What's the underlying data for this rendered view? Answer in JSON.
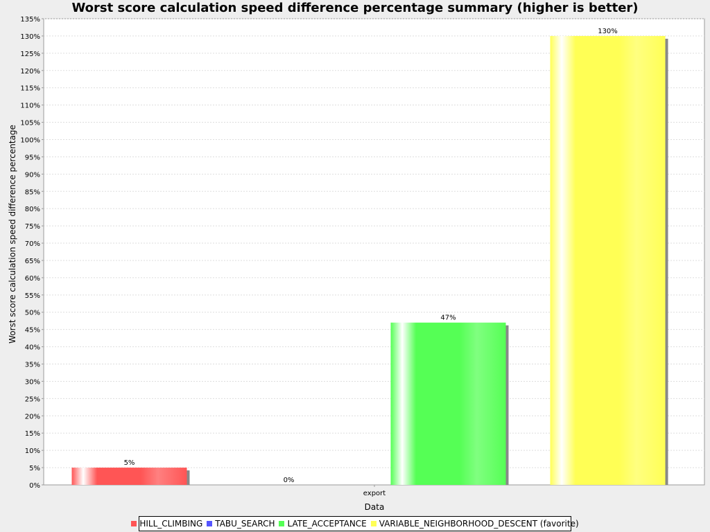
{
  "chart_data": {
    "type": "bar",
    "title": "Worst score calculation speed difference percentage summary (higher is better)",
    "xlabel": "Data",
    "ylabel": "Worst score calculation speed difference percentage",
    "categories": [
      "export"
    ],
    "series": [
      {
        "name": "HILL_CLIMBING",
        "values": [
          5
        ],
        "label": "5%",
        "color": "#ff5555"
      },
      {
        "name": "TABU_SEARCH",
        "values": [
          0
        ],
        "label": "0%",
        "color": "#5555ff"
      },
      {
        "name": "LATE_ACCEPTANCE",
        "values": [
          47
        ],
        "label": "47%",
        "color": "#55ff55"
      },
      {
        "name": "VARIABLE_NEIGHBORHOOD_DESCENT (favorite)",
        "values": [
          130
        ],
        "label": "130%",
        "color": "#ffff55"
      }
    ],
    "ylim": [
      0,
      135
    ],
    "y_ticks": [
      "0%",
      "5%",
      "10%",
      "15%",
      "20%",
      "25%",
      "30%",
      "35%",
      "40%",
      "45%",
      "50%",
      "55%",
      "60%",
      "65%",
      "70%",
      "75%",
      "80%",
      "85%",
      "90%",
      "95%",
      "100%",
      "105%",
      "110%",
      "115%",
      "120%",
      "125%",
      "130%",
      "135%"
    ],
    "grid": true,
    "legend_position": "bottom"
  }
}
